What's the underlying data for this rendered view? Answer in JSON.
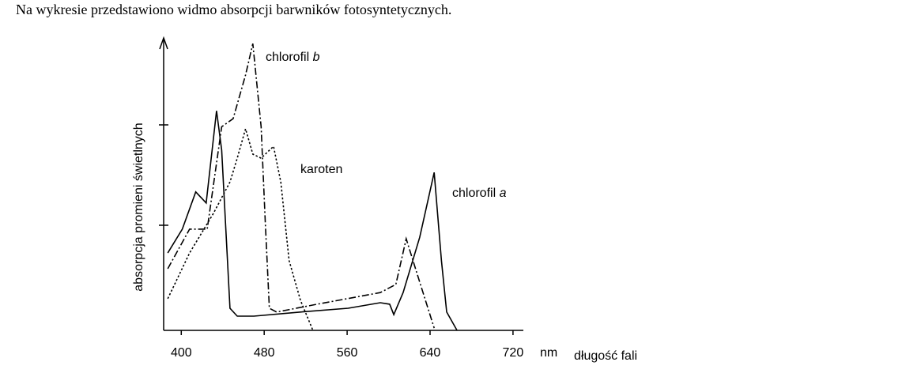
{
  "intro": "Na wykresie przedstawiono widmo absorpcji barwników fotosyntetycznych.",
  "chart_data": {
    "type": "line",
    "x_label": "długość fali",
    "x_unit": "nm",
    "y_label": "absorpcja promieni świetlnych",
    "xlim": [
      383,
      730
    ],
    "ylim": [
      0,
      100
    ],
    "xticks": [
      400,
      480,
      560,
      640,
      720
    ],
    "series": [
      {
        "name": "chlorofil a",
        "color": "#000000",
        "dash": "solid",
        "x": [
          387,
          401,
          414,
          424,
          434,
          439,
          447,
          454,
          470,
          515,
          561,
          592,
          601,
          605,
          614,
          630,
          644,
          651,
          656,
          666
        ],
        "values": [
          26.6,
          34.8,
          47.6,
          43.8,
          75.5,
          62,
          7.6,
          4.9,
          4.9,
          6.3,
          7.6,
          9.5,
          9,
          5.4,
          13,
          32,
          54.3,
          23.9,
          6.3,
          0
        ]
      },
      {
        "name": "chlorofil b",
        "color": "#000000",
        "dash": "dash-dot",
        "x": [
          387,
          408,
          425,
          439,
          450,
          462,
          469,
          477,
          481,
          485,
          492,
          531,
          592,
          607,
          617,
          626,
          644
        ],
        "values": [
          21.2,
          34.8,
          34.8,
          70,
          72.8,
          87.8,
          98.6,
          70,
          37.5,
          7.6,
          6.3,
          9,
          13,
          15.8,
          31.5,
          21.2,
          0.8
        ]
      },
      {
        "name": "karoten",
        "color": "#000000",
        "dash": "dotted",
        "x": [
          387,
          408,
          431,
          447,
          454,
          462,
          469,
          477,
          489,
          496,
          504,
          515,
          527
        ],
        "values": [
          10.9,
          26.6,
          40.2,
          51,
          59.2,
          69.3,
          60.6,
          59.2,
          63.3,
          51,
          24,
          10.3,
          0
        ]
      }
    ]
  }
}
